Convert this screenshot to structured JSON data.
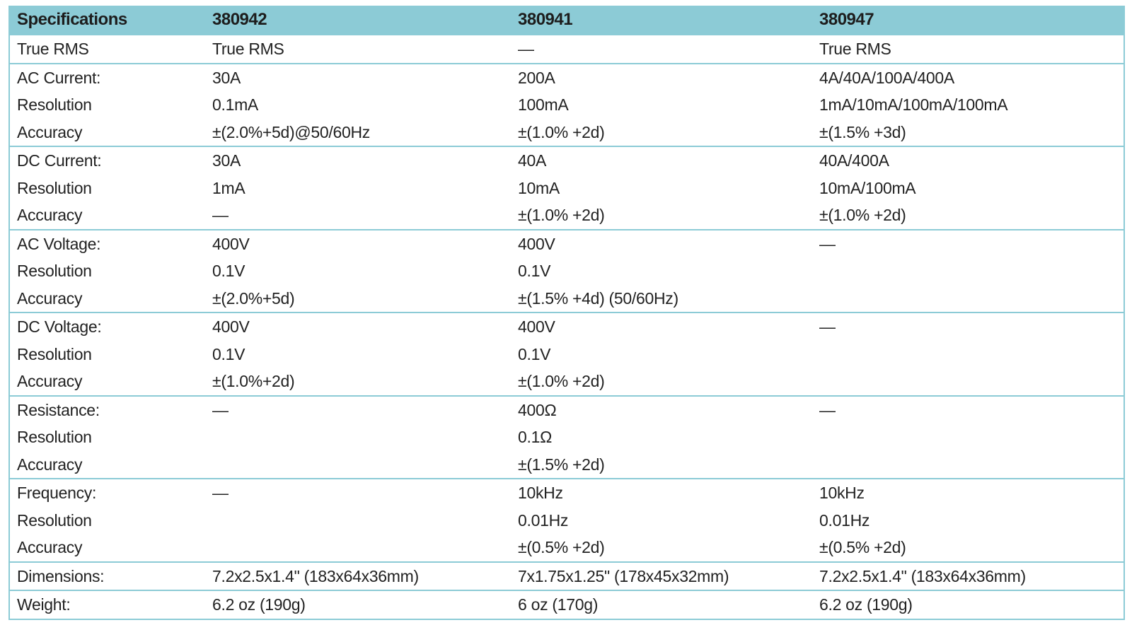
{
  "table": {
    "header": [
      "Specifications",
      "380942",
      "380941",
      "380947"
    ],
    "groups": [
      [
        [
          "True RMS",
          "True RMS",
          "—",
          "True RMS"
        ]
      ],
      [
        [
          "AC Current:",
          "30A",
          "200A",
          "4A/40A/100A/400A"
        ],
        [
          "Resolution",
          "0.1mA",
          "100mA",
          "1mA/10mA/100mA/100mA"
        ],
        [
          "Accuracy",
          "±(2.0%+5d)@50/60Hz",
          "±(1.0% +2d)",
          "±(1.5% +3d)"
        ]
      ],
      [
        [
          "DC Current:",
          "30A",
          "40A",
          "40A/400A"
        ],
        [
          "Resolution",
          "1mA",
          "10mA",
          "10mA/100mA"
        ],
        [
          "Accuracy",
          "—",
          "±(1.0% +2d)",
          "±(1.0% +2d)"
        ]
      ],
      [
        [
          "AC Voltage:",
          "400V",
          "400V",
          "—"
        ],
        [
          "Resolution",
          "0.1V",
          "0.1V",
          null
        ],
        [
          "Accuracy",
          "±(2.0%+5d)",
          "±(1.5% +4d) (50/60Hz)",
          null
        ]
      ],
      [
        [
          "DC Voltage:",
          "400V",
          "400V",
          "—"
        ],
        [
          "Resolution",
          "0.1V",
          "0.1V",
          null
        ],
        [
          "Accuracy",
          "±(1.0%+2d)",
          "±(1.0% +2d)",
          null
        ]
      ],
      [
        [
          "Resistance:",
          "—",
          "400Ω",
          "—"
        ],
        [
          "Resolution",
          null,
          "0.1Ω",
          null
        ],
        [
          "Accuracy",
          null,
          "±(1.5% +2d)",
          null
        ]
      ],
      [
        [
          "Frequency:",
          "—",
          "10kHz",
          "10kHz"
        ],
        [
          "Resolution",
          null,
          "0.01Hz",
          "0.01Hz"
        ],
        [
          "Accuracy",
          null,
          "±(0.5% +2d)",
          "±(0.5% +2d)"
        ]
      ],
      [
        [
          "Dimensions:",
          "7.2x2.5x1.4\" (183x64x36mm)",
          "7x1.75x1.25\" (178x45x32mm)",
          "7.2x2.5x1.4\" (183x64x36mm)"
        ]
      ],
      [
        [
          "Weight:",
          "6.2 oz (190g)",
          "6 oz (170g)",
          "6.2 oz (190g)"
        ]
      ]
    ]
  }
}
